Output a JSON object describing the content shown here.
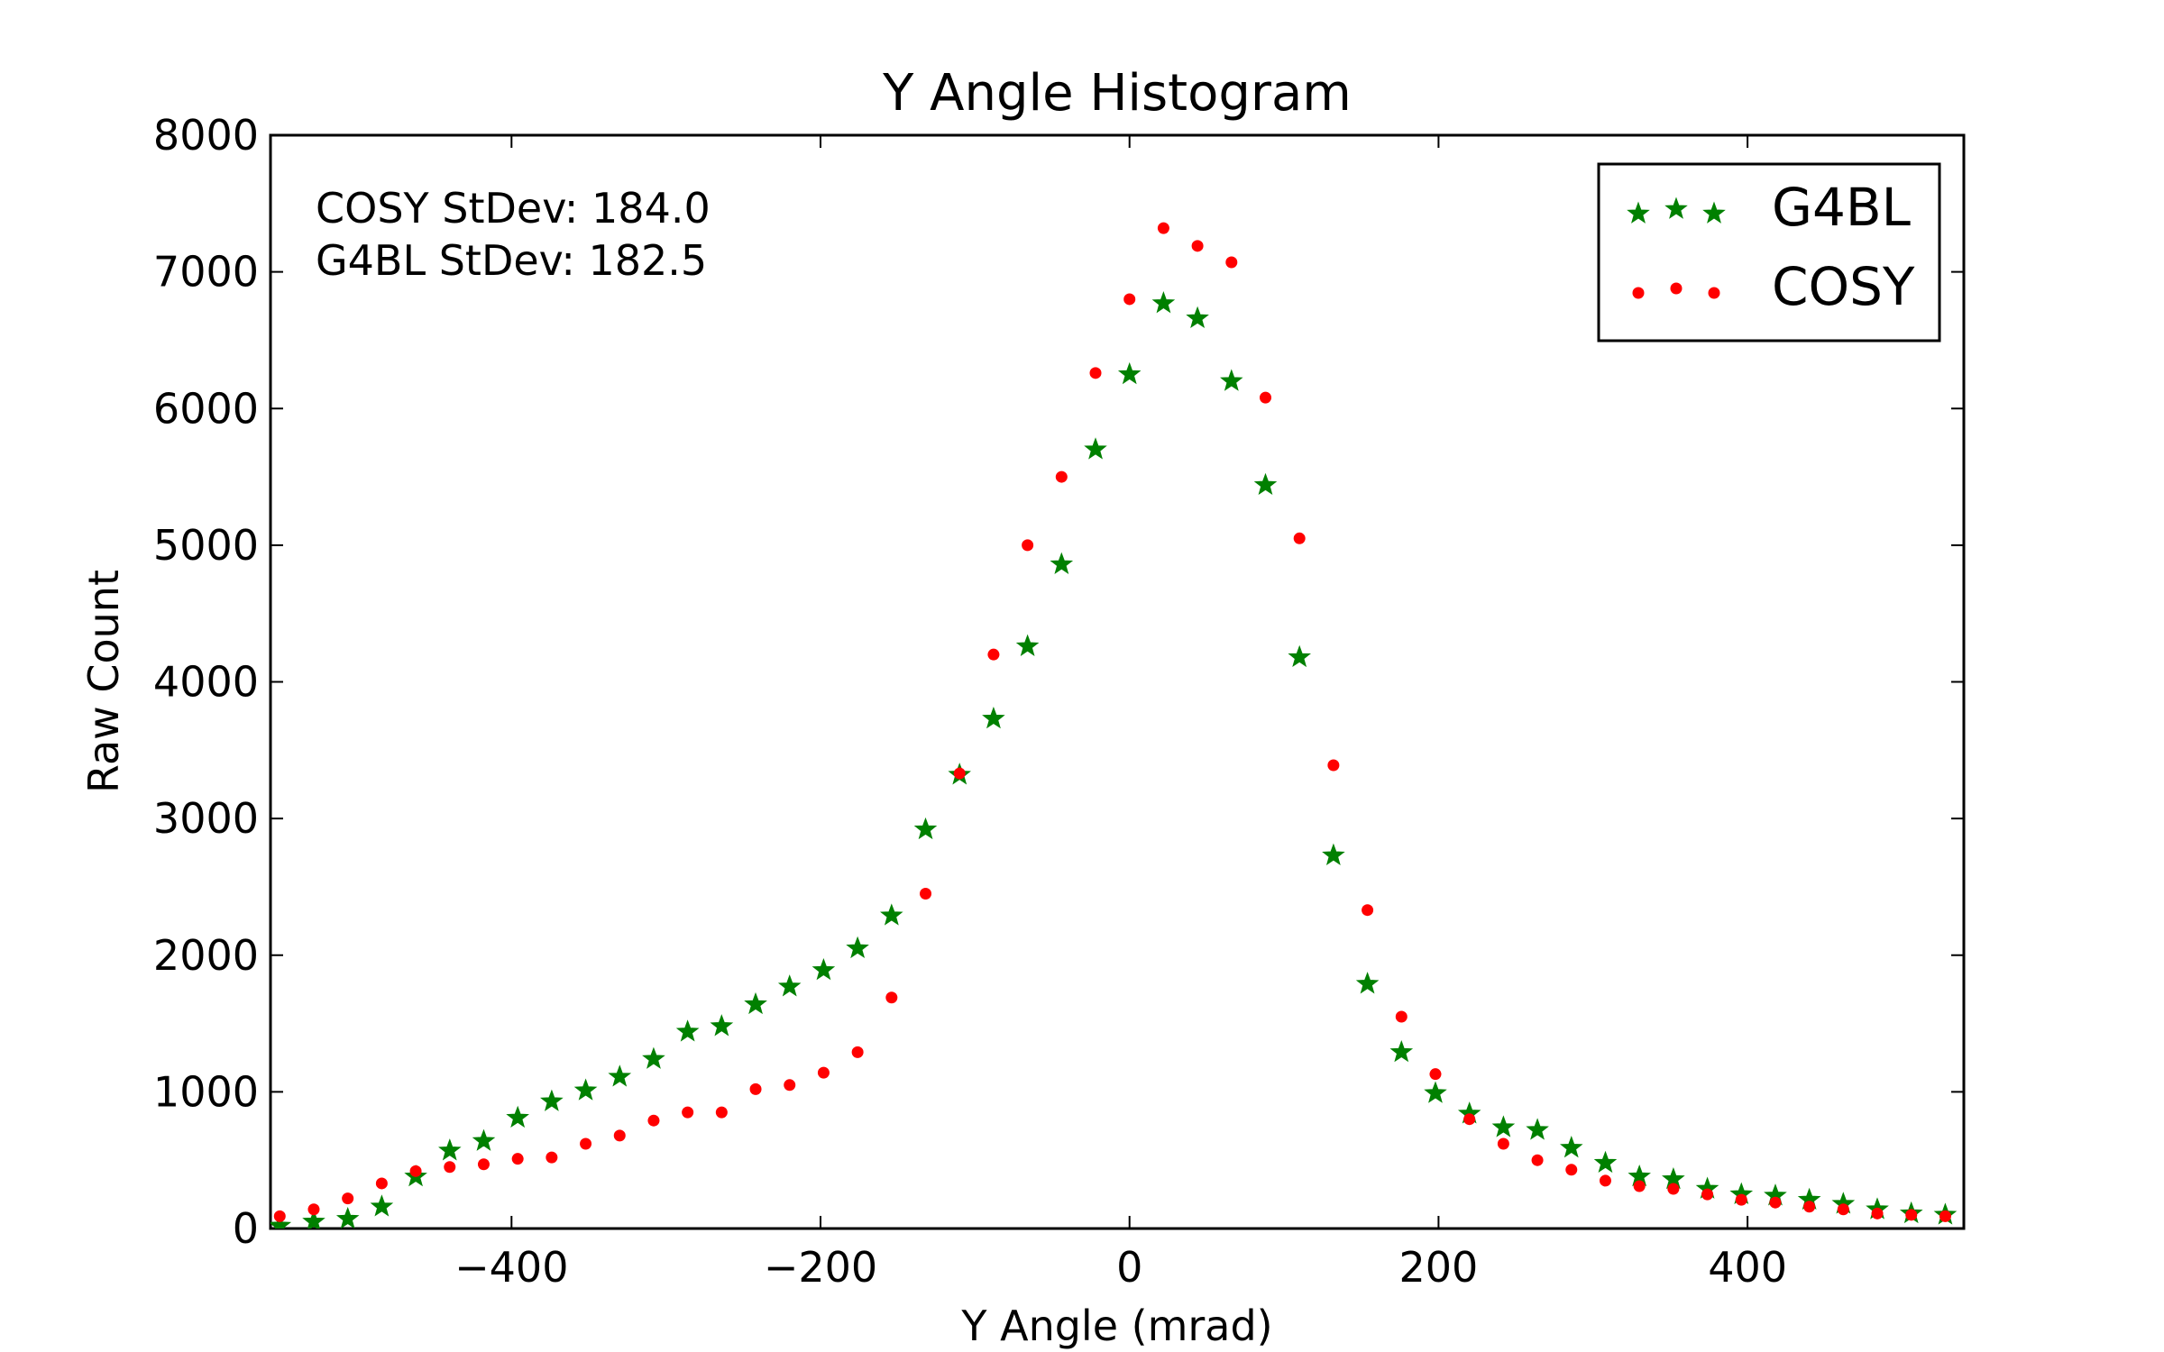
{
  "chart_data": {
    "type": "scatter",
    "title": "Y Angle Histogram",
    "xlabel": "Y Angle (mrad)",
    "ylabel": "Raw Count",
    "xlim": [
      -556,
      540
    ],
    "ylim": [
      0,
      8000
    ],
    "xticks": [
      -400,
      -200,
      0,
      200,
      400
    ],
    "xtick_labels": [
      "−400",
      "−200",
      "0",
      "200",
      "400"
    ],
    "yticks": [
      0,
      1000,
      2000,
      3000,
      4000,
      5000,
      6000,
      7000,
      8000
    ],
    "ytick_labels": [
      "0",
      "1000",
      "2000",
      "3000",
      "4000",
      "5000",
      "6000",
      "7000",
      "8000"
    ],
    "grid": false,
    "legend_position": "top-right",
    "annotations": [
      "COSY StDev: 184.0",
      "G4BL StDev: 182.5"
    ],
    "series": [
      {
        "name": "G4BL",
        "marker": "star",
        "color": "#008000",
        "x": [
          -550,
          -528,
          -506,
          -484,
          -462,
          -440,
          -418,
          -396,
          -374,
          -352,
          -330,
          -308,
          -286,
          -264,
          -242,
          -220,
          -198,
          -176,
          -154,
          -132,
          -110,
          -88,
          -66,
          -44,
          -22,
          0,
          22,
          44,
          66,
          88,
          110,
          132,
          154,
          176,
          198,
          220,
          242,
          264,
          286,
          308,
          330,
          352,
          374,
          396,
          418,
          440,
          462,
          484,
          506,
          528
        ],
        "y": [
          20,
          50,
          70,
          160,
          380,
          570,
          640,
          810,
          930,
          1010,
          1110,
          1240,
          1440,
          1480,
          1640,
          1770,
          1890,
          2050,
          2290,
          2920,
          3320,
          3730,
          4260,
          4860,
          5700,
          6250,
          6770,
          6660,
          6200,
          5440,
          4180,
          2730,
          1790,
          1290,
          990,
          840,
          740,
          720,
          590,
          480,
          380,
          360,
          290,
          250,
          240,
          210,
          180,
          140,
          110,
          100
        ]
      },
      {
        "name": "COSY",
        "marker": "circle",
        "color": "#ff0000",
        "x": [
          -550,
          -528,
          -506,
          -484,
          -462,
          -440,
          -418,
          -396,
          -374,
          -352,
          -330,
          -308,
          -286,
          -264,
          -242,
          -220,
          -198,
          -176,
          -154,
          -132,
          -110,
          -88,
          -66,
          -44,
          -22,
          0,
          22,
          44,
          66,
          88,
          110,
          132,
          154,
          176,
          198,
          220,
          242,
          264,
          286,
          308,
          330,
          352,
          374,
          396,
          418,
          440,
          462,
          484,
          506,
          528
        ],
        "y": [
          90,
          140,
          220,
          330,
          420,
          450,
          470,
          510,
          520,
          620,
          680,
          790,
          850,
          850,
          1020,
          1050,
          1140,
          1290,
          1690,
          2450,
          3330,
          4200,
          5000,
          5500,
          6260,
          6800,
          7320,
          7190,
          7070,
          6080,
          5050,
          3390,
          2330,
          1550,
          1130,
          800,
          620,
          500,
          430,
          350,
          310,
          290,
          250,
          210,
          190,
          160,
          140,
          110,
          100,
          90
        ]
      }
    ]
  }
}
